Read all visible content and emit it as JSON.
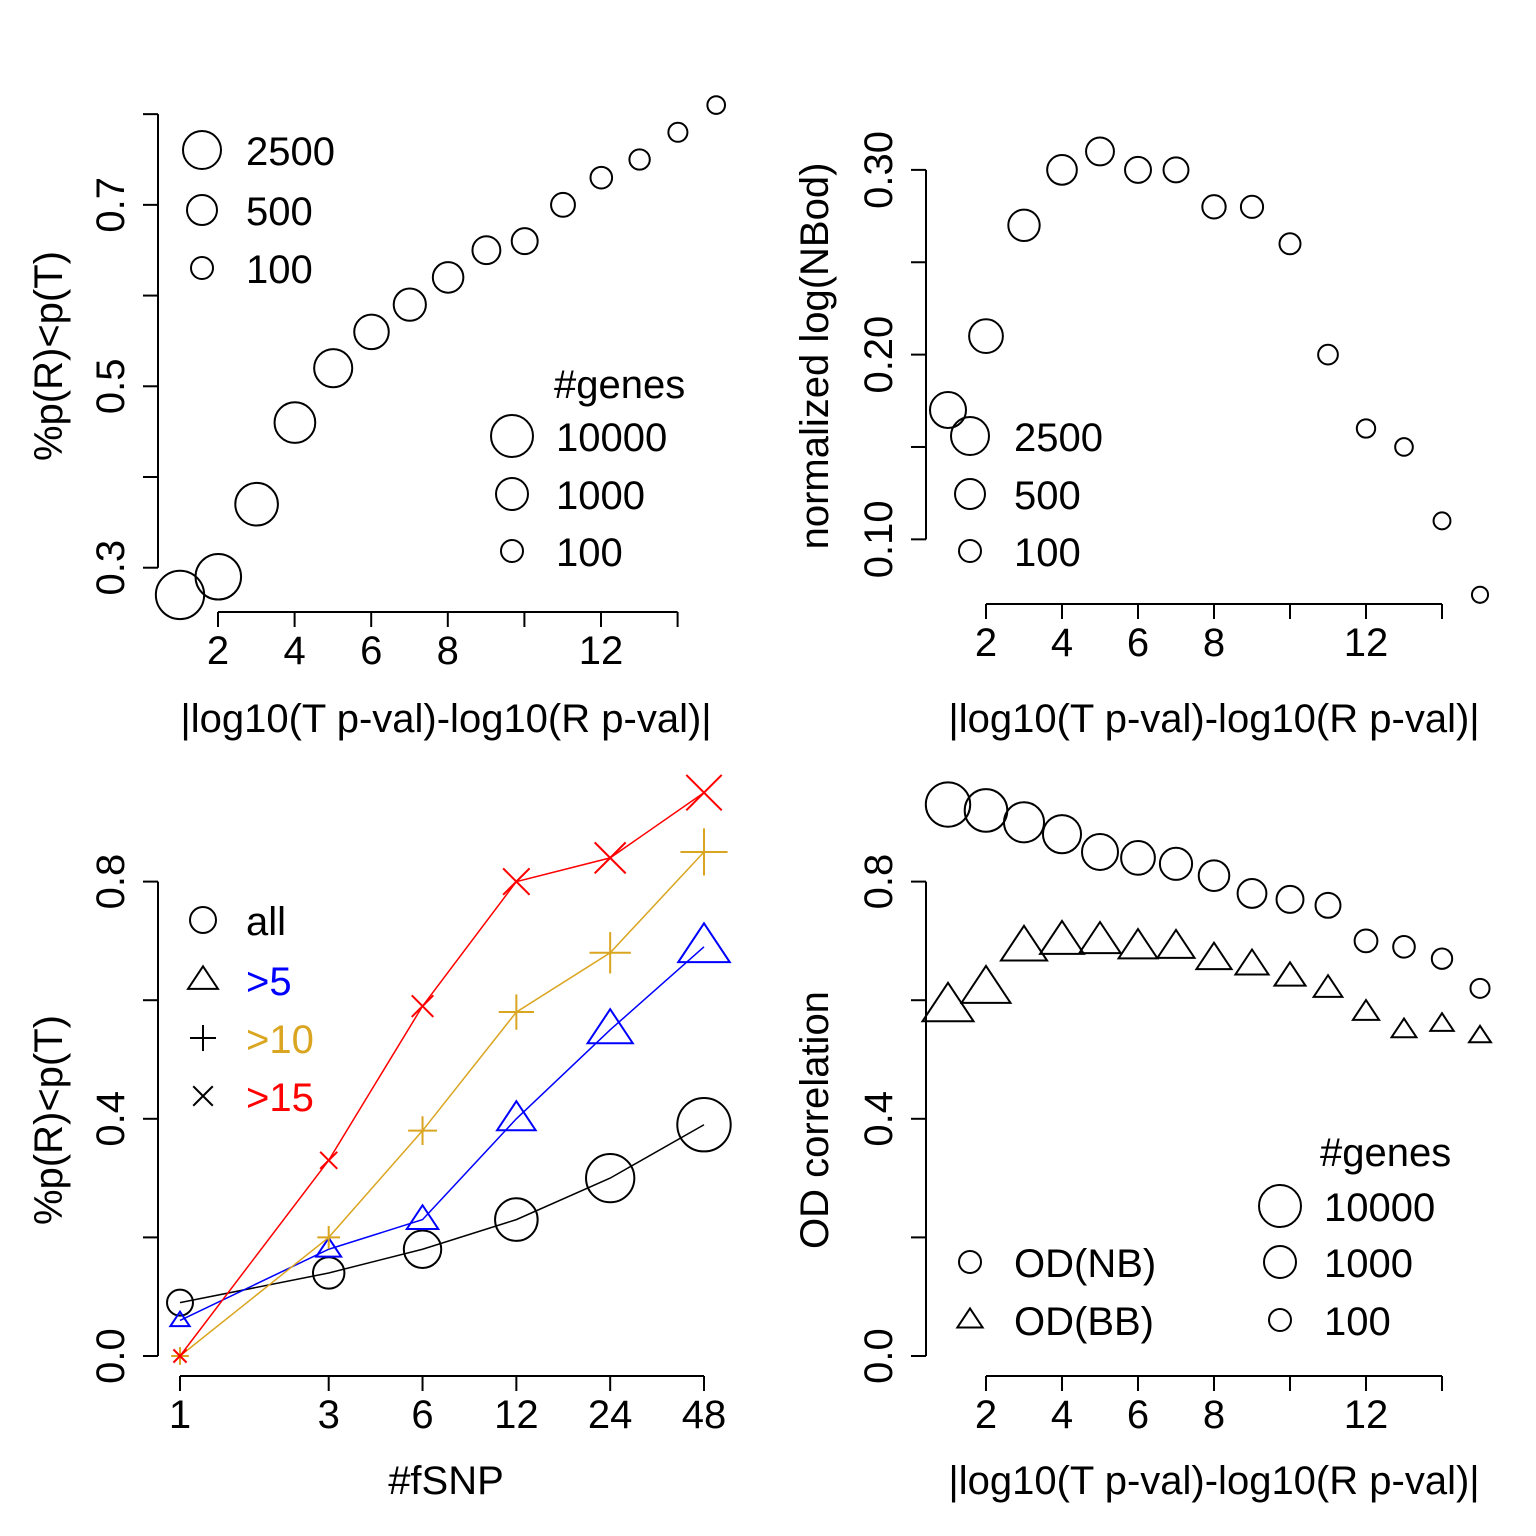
{
  "chart_data": [
    {
      "type": "scatter",
      "title": "",
      "xlabel": "|log10(T p-val)-log10(R p-val)|",
      "ylabel": "%p(R)<p(T)",
      "xlim": [
        1,
        14.5
      ],
      "ylim": [
        0.26,
        0.82
      ],
      "x_ticks": [
        2,
        4,
        6,
        8,
        10,
        12,
        14
      ],
      "x_tick_labels": [
        "2",
        "4",
        "6",
        "8",
        "",
        "12",
        ""
      ],
      "y_ticks": [
        0.3,
        0.4,
        0.5,
        0.6,
        0.7,
        0.8
      ],
      "y_tick_labels": [
        "0.3",
        "",
        "0.5",
        "",
        "0.7",
        ""
      ],
      "grid": false,
      "x": [
        1,
        2,
        3,
        4,
        5,
        6,
        7,
        8,
        9,
        10,
        11,
        12,
        13,
        14,
        15
      ],
      "y": [
        0.27,
        0.29,
        0.37,
        0.46,
        0.52,
        0.56,
        0.59,
        0.62,
        0.65,
        0.66,
        0.7,
        0.73,
        0.75,
        0.78,
        0.81
      ],
      "sizes": [
        4500,
        4000,
        3500,
        3200,
        2800,
        2300,
        2000,
        1800,
        1500,
        1300,
        1100,
        900,
        800,
        700,
        600
      ],
      "size_legend_1": {
        "entries": [
          "2500",
          "500",
          "100"
        ],
        "placement": "top-left"
      },
      "size_legend_2": {
        "title": "#genes",
        "entries": [
          "10000",
          "1000",
          "100"
        ],
        "placement": "bottom-right"
      }
    },
    {
      "type": "scatter",
      "title": "",
      "xlabel": "|log10(T p-val)-log10(R p-val)|",
      "ylabel": "normalized log(NBod)",
      "xlim": [
        0.6,
        14.6
      ],
      "ylim": [
        0.065,
        0.34
      ],
      "x_ticks": [
        2,
        4,
        6,
        8,
        10,
        12,
        14
      ],
      "x_tick_labels": [
        "2",
        "4",
        "6",
        "8",
        "",
        "12",
        ""
      ],
      "y_ticks": [
        0.1,
        0.15,
        0.2,
        0.25,
        0.3
      ],
      "y_tick_labels": [
        "0.10",
        "",
        "0.20",
        "",
        "0.30"
      ],
      "grid": false,
      "x": [
        1,
        2,
        3,
        4,
        5,
        6,
        7,
        8,
        9,
        10,
        11,
        12,
        13,
        14,
        15
      ],
      "y": [
        0.17,
        0.21,
        0.27,
        0.3,
        0.31,
        0.3,
        0.3,
        0.28,
        0.28,
        0.26,
        0.2,
        0.16,
        0.15,
        0.11,
        0.07
      ],
      "sizes": [
        2500,
        2200,
        1900,
        1700,
        1500,
        1300,
        1200,
        1050,
        950,
        850,
        750,
        650,
        600,
        550,
        500
      ],
      "size_legend": {
        "entries": [
          "2500",
          "500",
          "100"
        ],
        "placement": "bottom-left"
      }
    },
    {
      "type": "line",
      "title": "",
      "xlabel": "#fSNP",
      "ylabel": "%p(R)<p(T)",
      "x_scale": "log",
      "categories": [
        "1",
        "3",
        "6",
        "12",
        "24",
        "48"
      ],
      "x": [
        1,
        3,
        6,
        12,
        24,
        48
      ],
      "ylim": [
        -0.03,
        1.0
      ],
      "y_ticks": [
        0.0,
        0.2,
        0.4,
        0.6,
        0.8
      ],
      "y_tick_labels": [
        "0.0",
        "",
        "0.4",
        "",
        "0.8"
      ],
      "grid": false,
      "legend": {
        "entries": [
          "all",
          ">5",
          ">10",
          ">15"
        ],
        "placement": "top-left"
      },
      "series": [
        {
          "name": "all",
          "marker": "circle",
          "color": "#000000",
          "values": [
            0.09,
            0.14,
            0.18,
            0.23,
            0.3,
            0.39
          ]
        },
        {
          "name": ">5",
          "marker": "triangle",
          "color": "#0000ff",
          "values": [
            0.06,
            0.18,
            0.23,
            0.4,
            0.55,
            0.69
          ]
        },
        {
          "name": ">10",
          "marker": "plus",
          "color": "#daa520",
          "values": [
            0.0,
            0.2,
            0.38,
            0.58,
            0.68,
            0.85
          ]
        },
        {
          "name": ">15",
          "marker": "cross",
          "color": "#ff0000",
          "values": [
            0.0,
            0.33,
            0.59,
            0.8,
            0.84,
            0.95
          ]
        }
      ],
      "sizes_all": [
        1300,
        1900,
        2700,
        3500,
        4500,
        5500
      ],
      "sizes_other": [
        600,
        1000,
        1600,
        2400,
        3300,
        4300
      ]
    },
    {
      "type": "scatter",
      "title": "",
      "xlabel": "|log10(T p-val)-log10(R p-val)|",
      "ylabel": "OD correlation",
      "xlim": [
        0.6,
        14.6
      ],
      "ylim": [
        -0.02,
        1.0
      ],
      "x_ticks": [
        2,
        4,
        6,
        8,
        10,
        12,
        14
      ],
      "x_tick_labels": [
        "2",
        "4",
        "6",
        "8",
        "",
        "12",
        ""
      ],
      "y_ticks": [
        0.0,
        0.2,
        0.4,
        0.6,
        0.8
      ],
      "y_tick_labels": [
        "0.0",
        "",
        "0.4",
        "",
        "0.8"
      ],
      "grid": false,
      "x": [
        1,
        2,
        3,
        4,
        5,
        6,
        7,
        8,
        9,
        10,
        11,
        12,
        13,
        14,
        15
      ],
      "series": [
        {
          "name": "OD(NB)",
          "marker": "circle",
          "values": [
            0.93,
            0.92,
            0.9,
            0.88,
            0.85,
            0.84,
            0.83,
            0.81,
            0.78,
            0.77,
            0.76,
            0.7,
            0.69,
            0.67,
            0.62
          ]
        },
        {
          "name": "OD(BB)",
          "marker": "triangle",
          "values": [
            0.59,
            0.62,
            0.69,
            0.7,
            0.7,
            0.69,
            0.69,
            0.67,
            0.66,
            0.64,
            0.62,
            0.58,
            0.55,
            0.56,
            0.54
          ]
        }
      ],
      "sizes": [
        3800,
        3500,
        3100,
        2800,
        2500,
        2200,
        2000,
        1800,
        1600,
        1400,
        1200,
        1000,
        900,
        800,
        700
      ],
      "legend": {
        "entries": [
          "OD(NB)",
          "OD(BB)"
        ],
        "placement": "bottom-left"
      },
      "size_legend": {
        "title": "#genes",
        "entries": [
          "10000",
          "1000",
          "100"
        ],
        "placement": "bottom-right"
      }
    }
  ]
}
